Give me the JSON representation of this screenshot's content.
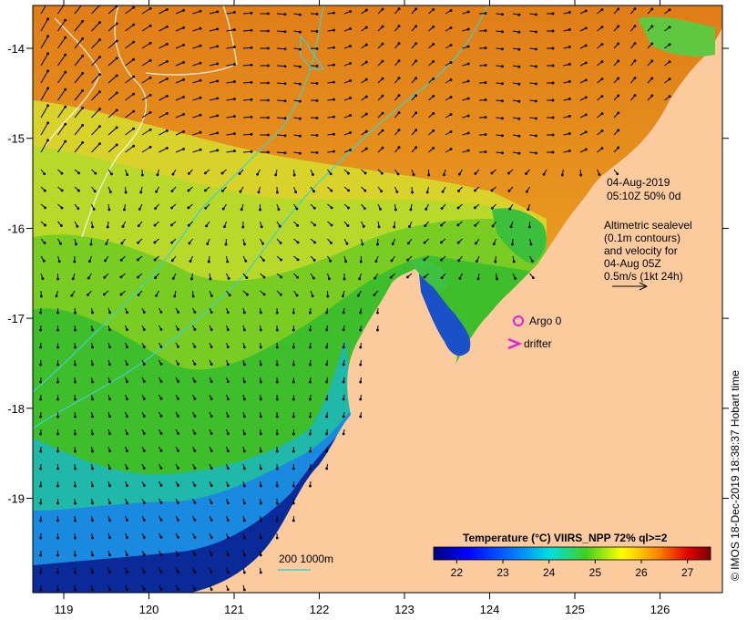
{
  "map": {
    "lon_ticks": [
      "119",
      "120",
      "121",
      "122",
      "123",
      "124",
      "125",
      "126"
    ],
    "lat_ticks": [
      "-14",
      "-15",
      "-16",
      "-17",
      "-18",
      "-19"
    ]
  },
  "annotation": {
    "date": "04-Aug-2019",
    "time_line": "05:10Z  50% 0d",
    "altimetry_lines": [
      "Altimetric sealevel",
      "(0.1m contours)",
      "and velocity for",
      "04-Aug 05Z",
      "0.5m/s (1kt 24h)"
    ]
  },
  "legend": {
    "argo_label": "Argo 0",
    "drifter_label": "drifter",
    "argo_color": "#e020e0",
    "drifter_color": "#e020e0"
  },
  "bathymetry": {
    "label": "200  1000m",
    "color": "#40d0d0"
  },
  "colorbar": {
    "title": "Temperature (°C) VIIRS_NPP 72% ql>=2",
    "ticks": [
      "22",
      "23",
      "24",
      "25",
      "26",
      "27"
    ],
    "range": [
      21.5,
      27.5
    ],
    "colors": [
      "#00007f",
      "#0000ff",
      "#0080ff",
      "#00ffff",
      "#80ff80",
      "#ffff00",
      "#ff8000",
      "#ff0000",
      "#7f0000"
    ]
  },
  "credit": "© IMOS 18-Dec-2019 18:38:37 Hobart time",
  "colors": {
    "land": "#fbcb9d",
    "ocean_warm": "#e48a18",
    "ocean_cool": "#0a2a9a"
  }
}
